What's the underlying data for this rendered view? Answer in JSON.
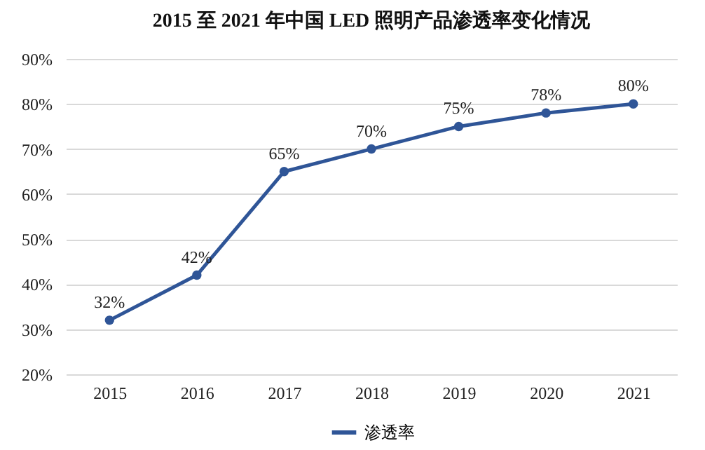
{
  "chart_data": {
    "type": "line",
    "title": "2015 至 2021 年中国 LED 照明产品渗透率变化情况",
    "categories": [
      "2015",
      "2016",
      "2017",
      "2018",
      "2019",
      "2020",
      "2021"
    ],
    "series": [
      {
        "name": "渗透率",
        "color": "#2f5597",
        "values": [
          32,
          42,
          65,
          70,
          75,
          78,
          80
        ],
        "value_labels": [
          "32%",
          "42%",
          "65%",
          "70%",
          "75%",
          "78%",
          "80%"
        ]
      }
    ],
    "ylim": [
      20,
      90
    ],
    "yticks": [
      {
        "value": 20,
        "label": "20%"
      },
      {
        "value": 30,
        "label": "30%"
      },
      {
        "value": 40,
        "label": "40%"
      },
      {
        "value": 50,
        "label": "50%"
      },
      {
        "value": 60,
        "label": "60%"
      },
      {
        "value": 70,
        "label": "70%"
      },
      {
        "value": 80,
        "label": "80%"
      },
      {
        "value": 90,
        "label": "90%"
      }
    ],
    "grid": "y",
    "legend": "bottom",
    "marker": "circle",
    "line_style": "solid"
  }
}
